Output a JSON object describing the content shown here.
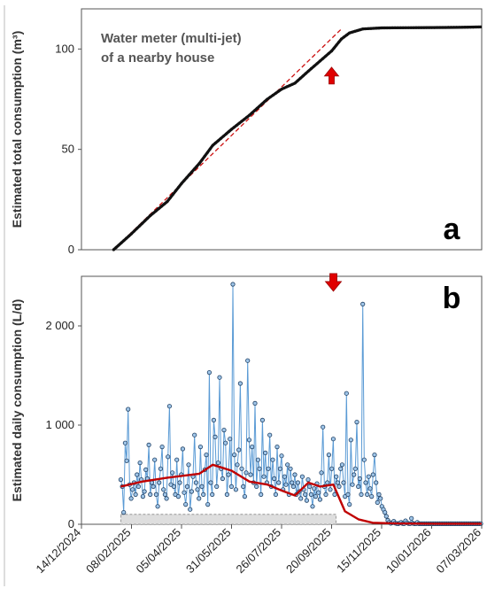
{
  "chart_data": [
    {
      "type": "line",
      "panel_label": "a",
      "title": "",
      "annotation": "Water meter (multi-jet)\nof a nearby house",
      "ylabel": "Estimated total consumption (m³)",
      "ylim": [
        0,
        120
      ],
      "yticks": [
        0,
        50,
        100
      ],
      "xlim": [
        "2024-12-14",
        "2026-03-07"
      ],
      "grid": false,
      "colors": {
        "series": "#111111",
        "trend": "#cc1111",
        "arrow": "#e00000"
      },
      "series": [
        {
          "x": [
            "2025-01-19",
            "2025-02-08",
            "2025-03-01",
            "2025-03-20",
            "2025-04-05",
            "2025-04-25",
            "2025-05-10",
            "2025-05-31",
            "2025-06-20",
            "2025-07-10",
            "2025-07-26",
            "2025-08-10",
            "2025-08-25",
            "2025-09-07",
            "2025-09-20",
            "2025-10-01",
            "2025-10-10",
            "2025-10-25",
            "2025-11-15",
            "2025-12-15",
            "2026-01-10",
            "2026-02-10",
            "2026-03-07"
          ],
          "values": [
            0,
            8,
            17,
            24,
            33,
            43,
            52,
            60,
            67,
            75,
            80,
            83,
            89,
            94,
            99,
            105,
            108,
            110,
            110.5,
            110.6,
            110.7,
            110.8,
            111
          ]
        }
      ],
      "trendline": {
        "x": [
          "2025-01-19",
          "2025-10-01"
        ],
        "values": [
          0,
          110
        ]
      },
      "arrow": {
        "x": "2025-09-20",
        "direction": "up"
      }
    },
    {
      "type": "line",
      "panel_label": "b",
      "title": "",
      "ylabel": "Estimated daily consumption (L/d)",
      "ylim": [
        0,
        2500
      ],
      "yticks": [
        0,
        1000,
        2000
      ],
      "ytick_labels": [
        "0",
        "1 000",
        "2 000"
      ],
      "xlim": [
        "2024-12-14",
        "2026-03-07"
      ],
      "xticks": [
        "14/12/2024",
        "08/02/2025",
        "05/04/2025",
        "31/05/2025",
        "26/07/2025",
        "20/09/2025",
        "15/11/2025",
        "10/01/2026",
        "07/03/2026"
      ],
      "grid": false,
      "band": {
        "y_range": [
          0,
          100
        ],
        "x_end": "2025-09-25"
      },
      "colors": {
        "daily": "#5b9bd5",
        "smooth": "#c00000",
        "arrow": "#e00000"
      },
      "series": [
        {
          "values": [
            450,
            380,
            120,
            820,
            640,
            1160,
            400,
            260,
            350,
            420,
            300,
            500,
            380,
            620,
            450,
            280,
            330,
            550,
            460,
            800,
            300,
            420,
            380,
            650,
            300,
            180,
            420,
            560,
            780,
            350,
            300,
            260,
            680,
            1190,
            400,
            520,
            380,
            300,
            650,
            280,
            420,
            500,
            760,
            320,
            200,
            380,
            600,
            150,
            330,
            480,
            900,
            420,
            350,
            260,
            780,
            380,
            300,
            550,
            700,
            200,
            1530,
            420,
            300,
            1050,
            880,
            380,
            620,
            1480,
            560,
            460,
            950,
            820,
            300,
            500,
            860,
            380,
            2420,
            700,
            350,
            600,
            750,
            1420,
            560,
            380,
            280,
            520,
            1650,
            850,
            500,
            780,
            420,
            1220,
            380,
            650,
            560,
            300,
            1050,
            480,
            720,
            420,
            560,
            900,
            380,
            650,
            460,
            300,
            780,
            420,
            560,
            690,
            350,
            480,
            400,
            600,
            300,
            560,
            420,
            380,
            500,
            300,
            420,
            330,
            260,
            480,
            350,
            300,
            240,
            450,
            380,
            300,
            180,
            360,
            280,
            410,
            320,
            250,
            520,
            980,
            380,
            300,
            420,
            700,
            350,
            560,
            860,
            300,
            480,
            420,
            380,
            560,
            600,
            420,
            280,
            1320,
            300,
            200,
            850,
            400,
            500,
            560,
            1030,
            380,
            460,
            300,
            2220,
            650,
            420,
            300,
            480,
            360,
            280,
            500,
            700,
            420,
            220,
            300,
            260,
            180,
            150,
            120,
            80,
            40,
            20,
            10,
            15,
            30,
            12,
            8,
            5,
            12,
            20,
            8,
            5,
            35,
            15,
            8,
            5,
            60,
            10,
            5,
            5,
            20,
            5,
            5,
            5,
            5,
            5,
            5,
            5,
            5,
            5,
            5,
            5,
            5,
            5,
            5,
            5,
            5,
            5,
            5,
            5,
            5,
            5,
            5,
            5,
            5,
            5,
            5,
            5,
            5,
            5,
            5,
            5,
            5,
            5,
            5,
            5,
            5,
            5,
            5,
            5,
            5,
            5,
            5,
            5
          ]
        },
        {
          "x": [
            "2025-01-27",
            "2025-02-20",
            "2025-03-20",
            "2025-04-25",
            "2025-05-10",
            "2025-05-31",
            "2025-06-20",
            "2025-07-10",
            "2025-07-26",
            "2025-08-10",
            "2025-08-25",
            "2025-09-07",
            "2025-09-22",
            "2025-10-05",
            "2025-10-20",
            "2025-11-05",
            "2025-12-01",
            "2026-01-10",
            "2026-03-07"
          ],
          "values": [
            380,
            430,
            470,
            510,
            600,
            540,
            430,
            400,
            340,
            290,
            420,
            380,
            400,
            130,
            50,
            15,
            8,
            5,
            5
          ]
        }
      ],
      "arrow": {
        "x": "2025-09-22",
        "direction": "down"
      }
    }
  ]
}
